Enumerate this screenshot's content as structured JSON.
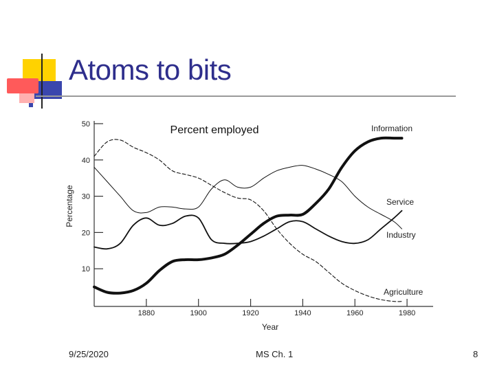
{
  "slide": {
    "title": "Atoms to bits",
    "footer_date": "9/25/2020",
    "footer_course": "MS Ch. 1",
    "footer_page": "8"
  },
  "colors": {
    "title": "#2e2e8c",
    "deco_yellow": "#ffd200",
    "deco_red": "#ff5a5a",
    "deco_blue": "#3a46ad",
    "rule": "#9a9a9a"
  },
  "chart_data": {
    "type": "line",
    "title": "Percent employed",
    "xlabel": "Year",
    "ylabel": "Percentage",
    "xlim": [
      1860,
      1990
    ],
    "ylim": [
      0,
      50
    ],
    "x_ticks": [
      1880,
      1900,
      1920,
      1940,
      1960,
      1980
    ],
    "y_ticks": [
      10,
      20,
      30,
      40,
      50
    ],
    "grid": false,
    "series": [
      {
        "name": "Information",
        "style": "thick",
        "x": [
          1860,
          1865,
          1870,
          1875,
          1880,
          1885,
          1890,
          1895,
          1900,
          1905,
          1910,
          1915,
          1920,
          1925,
          1930,
          1935,
          1940,
          1945,
          1950,
          1955,
          1960,
          1965,
          1970,
          1975,
          1978
        ],
        "y": [
          5,
          3.5,
          3.3,
          4,
          6,
          9.5,
          12,
          12.5,
          12.5,
          13,
          14,
          16.5,
          19.5,
          22.5,
          24.5,
          24.8,
          25,
          28,
          32,
          38,
          42.5,
          45,
          46,
          46,
          46
        ]
      },
      {
        "name": "Service",
        "style": "medium",
        "x": [
          1860,
          1865,
          1870,
          1875,
          1880,
          1885,
          1890,
          1895,
          1900,
          1905,
          1910,
          1915,
          1920,
          1925,
          1930,
          1935,
          1940,
          1945,
          1950,
          1955,
          1960,
          1965,
          1970,
          1975,
          1978
        ],
        "y": [
          16,
          15.5,
          17,
          22,
          24,
          22,
          22.5,
          24.5,
          24,
          18,
          17,
          17,
          17.5,
          19,
          21,
          23,
          23,
          21,
          19,
          17.5,
          17,
          18,
          21,
          24,
          26
        ]
      },
      {
        "name": "Industry",
        "style": "thin",
        "x": [
          1860,
          1865,
          1870,
          1875,
          1880,
          1885,
          1890,
          1895,
          1900,
          1905,
          1910,
          1915,
          1920,
          1925,
          1930,
          1935,
          1940,
          1945,
          1950,
          1955,
          1960,
          1965,
          1970,
          1975,
          1978
        ],
        "y": [
          38,
          34,
          30,
          26,
          25.5,
          27,
          27,
          26.5,
          27,
          32,
          34.5,
          32.5,
          32.5,
          35,
          37,
          38,
          38.5,
          37.5,
          36,
          34,
          30,
          27,
          25,
          23,
          21
        ]
      },
      {
        "name": "Agriculture",
        "style": "dashed",
        "x": [
          1860,
          1865,
          1870,
          1875,
          1880,
          1885,
          1890,
          1895,
          1900,
          1905,
          1910,
          1915,
          1920,
          1925,
          1930,
          1935,
          1940,
          1945,
          1950,
          1955,
          1960,
          1965,
          1970,
          1975,
          1978
        ],
        "y": [
          41,
          45,
          45.5,
          43.5,
          42,
          40,
          37,
          36,
          35,
          33,
          31,
          29.5,
          29,
          26,
          21,
          17,
          14,
          12,
          9,
          6,
          4,
          2.5,
          1.5,
          1,
          1
        ]
      }
    ]
  }
}
